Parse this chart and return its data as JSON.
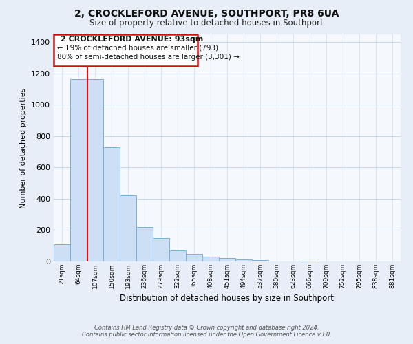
{
  "title": "2, CROCKLEFORD AVENUE, SOUTHPORT, PR8 6UA",
  "subtitle": "Size of property relative to detached houses in Southport",
  "xlabel": "Distribution of detached houses by size in Southport",
  "ylabel": "Number of detached properties",
  "bar_labels": [
    "21sqm",
    "64sqm",
    "107sqm",
    "150sqm",
    "193sqm",
    "236sqm",
    "279sqm",
    "322sqm",
    "365sqm",
    "408sqm",
    "451sqm",
    "494sqm",
    "537sqm",
    "580sqm",
    "623sqm",
    "666sqm",
    "709sqm",
    "752sqm",
    "795sqm",
    "838sqm",
    "881sqm"
  ],
  "bar_values": [
    108,
    1165,
    1165,
    730,
    420,
    220,
    150,
    72,
    50,
    32,
    20,
    13,
    10,
    0,
    0,
    5,
    0,
    0,
    0,
    0,
    0
  ],
  "bar_color": "#ccdff5",
  "bar_edge_color": "#7aafd4",
  "ylim": [
    0,
    1450
  ],
  "yticks": [
    0,
    200,
    400,
    600,
    800,
    1000,
    1200,
    1400
  ],
  "red_line_x": 1.55,
  "annotation_title": "2 CROCKLEFORD AVENUE: 93sqm",
  "annotation_line1": "← 19% of detached houses are smaller (793)",
  "annotation_line2": "80% of semi-detached houses are larger (3,301) →",
  "footer_line1": "Contains HM Land Registry data © Crown copyright and database right 2024.",
  "footer_line2": "Contains public sector information licensed under the Open Government Licence v3.0.",
  "background_color": "#e8eef8",
  "plot_bg_color": "#f5f8fd",
  "grid_color": "#c8d4e8"
}
